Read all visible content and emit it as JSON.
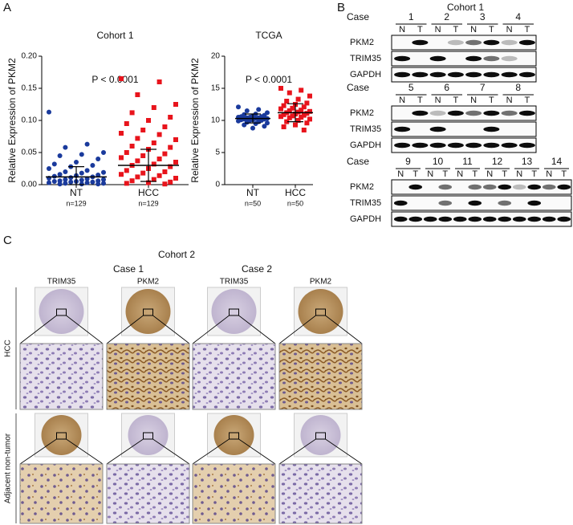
{
  "chart_data": [
    {
      "type": "dot",
      "panel_label": "A",
      "title": "Cohort 1",
      "annotation": "P < 0.0001",
      "y_label": "Relative Expression of PKM2",
      "ylim": [
        0,
        0.2
      ],
      "yticks": [
        {
          "value": 0,
          "label": "0.00"
        },
        {
          "value": 0.05,
          "label": "0.05"
        },
        {
          "value": 0.1,
          "label": "0.10"
        },
        {
          "value": 0.15,
          "label": "0.15"
        },
        {
          "value": 0.2,
          "label": "0.20"
        }
      ],
      "groups": [
        {
          "category": "NT",
          "n_label": "n=129",
          "color": "#1a3a9c",
          "marker": "circle",
          "mean": 0.012,
          "sd": 0.016,
          "values": [
            0.113,
            0.063,
            0.058,
            0.05,
            0.047,
            0.045,
            0.04,
            0.035,
            0.032,
            0.03,
            0.028,
            0.025,
            0.022,
            0.02,
            0.019,
            0.018,
            0.016,
            0.015,
            0.014,
            0.013,
            0.012,
            0.011,
            0.01,
            0.009,
            0.008,
            0.008,
            0.007,
            0.006,
            0.006,
            0.005,
            0.005,
            0.004,
            0.004,
            0.003,
            0.003,
            0.002,
            0.002,
            0.001,
            0.001,
            0.001
          ]
        },
        {
          "category": "HCC",
          "n_label": "n=129",
          "color": "#e8141c",
          "marker": "square",
          "mean": 0.03,
          "sd": 0.025,
          "values": [
            0.165,
            0.16,
            0.14,
            0.125,
            0.12,
            0.112,
            0.105,
            0.1,
            0.095,
            0.09,
            0.085,
            0.08,
            0.078,
            0.072,
            0.07,
            0.065,
            0.06,
            0.058,
            0.055,
            0.05,
            0.048,
            0.045,
            0.042,
            0.04,
            0.037,
            0.035,
            0.032,
            0.03,
            0.028,
            0.025,
            0.022,
            0.02,
            0.018,
            0.016,
            0.014,
            0.012,
            0.01,
            0.008,
            0.006,
            0.004,
            0.003,
            0.002,
            0.001
          ]
        }
      ]
    },
    {
      "type": "dot",
      "title": "TCGA",
      "annotation": "P < 0.0001",
      "y_label": "Relative Expression of PKM2",
      "ylim": [
        0,
        20
      ],
      "yticks": [
        0,
        5,
        10,
        15,
        20
      ],
      "groups": [
        {
          "category": "NT",
          "n_label": "n=50",
          "color": "#1a3a9c",
          "marker": "circle",
          "mean": 10.3,
          "sd": 0.7,
          "values": [
            12.1,
            11.7,
            11.5,
            11.2,
            11.0,
            10.9,
            10.8,
            10.7,
            10.6,
            10.6,
            10.5,
            10.5,
            10.4,
            10.4,
            10.3,
            10.3,
            10.2,
            10.2,
            10.1,
            10.1,
            10.0,
            10.0,
            9.9,
            9.8,
            9.7,
            9.6,
            9.5,
            9.3,
            9.1,
            8.8
          ]
        },
        {
          "category": "HCC",
          "n_label": "n=50",
          "color": "#e8141c",
          "marker": "square",
          "mean": 11.2,
          "sd": 1.4,
          "values": [
            15.0,
            14.7,
            14.3,
            13.8,
            13.3,
            13.0,
            12.7,
            12.5,
            12.3,
            12.1,
            11.9,
            11.8,
            11.6,
            11.5,
            11.4,
            11.3,
            11.2,
            11.1,
            11.0,
            10.9,
            10.8,
            10.7,
            10.6,
            10.5,
            10.4,
            10.2,
            10.0,
            9.8,
            9.6,
            9.3,
            9.0,
            8.5
          ]
        }
      ]
    }
  ],
  "panel_b": {
    "label": "B",
    "title": "Cohort 1",
    "case_label": "Case",
    "lanes": [
      "N",
      "T"
    ],
    "blocks": [
      {
        "cases": [
          "1",
          "2",
          "3",
          "4"
        ],
        "rows": [
          "PKM2",
          "TRIM35",
          "GAPDH"
        ]
      },
      {
        "cases": [
          "5",
          "6",
          "7",
          "8"
        ],
        "rows": [
          "PKM2",
          "TRIM35",
          "GAPDH"
        ]
      },
      {
        "cases": [
          "9",
          "10",
          "11",
          "12",
          "13",
          "14"
        ],
        "rows": [
          "PKM2",
          "TRIM35",
          "GAPDH"
        ]
      }
    ]
  },
  "panel_c": {
    "label": "C",
    "title": "Cohort 2",
    "cases": [
      "Case 1",
      "Case 2"
    ],
    "stains": [
      "TRIM35",
      "PKM2",
      "TRIM35",
      "PKM2"
    ],
    "tissues": [
      "HCC",
      "Adjacent non-tumor"
    ]
  }
}
